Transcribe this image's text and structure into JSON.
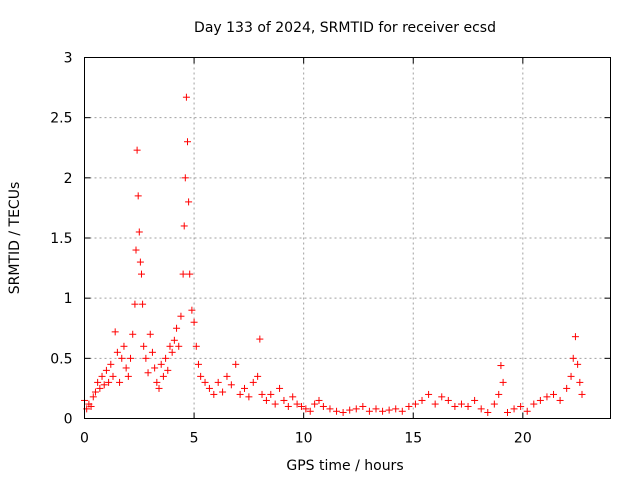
{
  "chart_data": {
    "type": "scatter",
    "title": "Day 133 of 2024, SRMTID for receiver ecsd",
    "xlabel": "GPS time / hours",
    "ylabel": "SRMTID / TECUs",
    "xlim": [
      0,
      24
    ],
    "ylim": [
      0,
      3
    ],
    "xticks": [
      0,
      5,
      10,
      15,
      20
    ],
    "xtick_labels": [
      "0",
      "5",
      "10",
      "15",
      "20"
    ],
    "yticks": [
      0,
      0.5,
      1,
      1.5,
      2,
      2.5,
      3
    ],
    "ytick_labels": [
      "0",
      "0.5",
      "1",
      "1.5",
      "2",
      "2.5",
      "3"
    ],
    "grid": true,
    "marker": "+",
    "color": "#ff0000",
    "series": [
      {
        "name": "SRMTID",
        "points": [
          [
            0.0,
            0.15
          ],
          [
            0.1,
            0.08
          ],
          [
            0.2,
            0.12
          ],
          [
            0.3,
            0.1
          ],
          [
            0.4,
            0.18
          ],
          [
            0.5,
            0.22
          ],
          [
            0.6,
            0.3
          ],
          [
            0.7,
            0.25
          ],
          [
            0.8,
            0.35
          ],
          [
            0.9,
            0.28
          ],
          [
            1.0,
            0.4
          ],
          [
            1.1,
            0.3
          ],
          [
            1.2,
            0.45
          ],
          [
            1.3,
            0.35
          ],
          [
            1.4,
            0.72
          ],
          [
            1.5,
            0.55
          ],
          [
            1.6,
            0.3
          ],
          [
            1.7,
            0.5
          ],
          [
            1.8,
            0.6
          ],
          [
            1.9,
            0.42
          ],
          [
            2.0,
            0.35
          ],
          [
            2.1,
            0.5
          ],
          [
            2.2,
            0.7
          ],
          [
            2.3,
            0.95
          ],
          [
            2.35,
            1.4
          ],
          [
            2.4,
            2.23
          ],
          [
            2.45,
            1.85
          ],
          [
            2.5,
            1.55
          ],
          [
            2.55,
            1.3
          ],
          [
            2.6,
            1.2
          ],
          [
            2.65,
            0.95
          ],
          [
            2.7,
            0.6
          ],
          [
            2.8,
            0.5
          ],
          [
            2.9,
            0.38
          ],
          [
            3.0,
            0.7
          ],
          [
            3.1,
            0.55
          ],
          [
            3.2,
            0.42
          ],
          [
            3.3,
            0.3
          ],
          [
            3.4,
            0.25
          ],
          [
            3.5,
            0.45
          ],
          [
            3.6,
            0.35
          ],
          [
            3.7,
            0.5
          ],
          [
            3.8,
            0.4
          ],
          [
            3.9,
            0.6
          ],
          [
            4.0,
            0.55
          ],
          [
            4.1,
            0.65
          ],
          [
            4.2,
            0.75
          ],
          [
            4.3,
            0.6
          ],
          [
            4.4,
            0.85
          ],
          [
            4.5,
            1.2
          ],
          [
            4.55,
            1.6
          ],
          [
            4.6,
            2.0
          ],
          [
            4.65,
            2.67
          ],
          [
            4.7,
            2.3
          ],
          [
            4.75,
            1.8
          ],
          [
            4.8,
            1.2
          ],
          [
            4.9,
            0.9
          ],
          [
            5.0,
            0.8
          ],
          [
            5.1,
            0.6
          ],
          [
            5.2,
            0.45
          ],
          [
            5.3,
            0.35
          ],
          [
            5.5,
            0.3
          ],
          [
            5.7,
            0.25
          ],
          [
            5.9,
            0.2
          ],
          [
            6.1,
            0.3
          ],
          [
            6.3,
            0.22
          ],
          [
            6.5,
            0.35
          ],
          [
            6.7,
            0.28
          ],
          [
            6.9,
            0.45
          ],
          [
            7.1,
            0.2
          ],
          [
            7.3,
            0.25
          ],
          [
            7.5,
            0.18
          ],
          [
            7.7,
            0.3
          ],
          [
            7.9,
            0.35
          ],
          [
            8.0,
            0.66
          ],
          [
            8.1,
            0.2
          ],
          [
            8.3,
            0.15
          ],
          [
            8.5,
            0.2
          ],
          [
            8.7,
            0.12
          ],
          [
            8.9,
            0.25
          ],
          [
            9.1,
            0.15
          ],
          [
            9.3,
            0.1
          ],
          [
            9.5,
            0.18
          ],
          [
            9.7,
            0.12
          ],
          [
            9.9,
            0.1
          ],
          [
            10.1,
            0.08
          ],
          [
            10.3,
            0.06
          ],
          [
            10.5,
            0.12
          ],
          [
            10.7,
            0.15
          ],
          [
            10.9,
            0.1
          ],
          [
            11.2,
            0.08
          ],
          [
            11.5,
            0.06
          ],
          [
            11.8,
            0.05
          ],
          [
            12.1,
            0.07
          ],
          [
            12.4,
            0.08
          ],
          [
            12.7,
            0.1
          ],
          [
            13.0,
            0.06
          ],
          [
            13.3,
            0.08
          ],
          [
            13.6,
            0.06
          ],
          [
            13.9,
            0.07
          ],
          [
            14.2,
            0.08
          ],
          [
            14.5,
            0.06
          ],
          [
            14.8,
            0.1
          ],
          [
            15.1,
            0.12
          ],
          [
            15.4,
            0.15
          ],
          [
            15.7,
            0.2
          ],
          [
            16.0,
            0.12
          ],
          [
            16.3,
            0.18
          ],
          [
            16.6,
            0.15
          ],
          [
            16.9,
            0.1
          ],
          [
            17.2,
            0.12
          ],
          [
            17.5,
            0.1
          ],
          [
            17.8,
            0.15
          ],
          [
            18.1,
            0.08
          ],
          [
            18.4,
            0.05
          ],
          [
            18.7,
            0.12
          ],
          [
            18.9,
            0.2
          ],
          [
            19.0,
            0.44
          ],
          [
            19.1,
            0.3
          ],
          [
            19.3,
            0.05
          ],
          [
            19.6,
            0.08
          ],
          [
            19.9,
            0.1
          ],
          [
            20.2,
            0.06
          ],
          [
            20.5,
            0.12
          ],
          [
            20.8,
            0.15
          ],
          [
            21.1,
            0.18
          ],
          [
            21.4,
            0.2
          ],
          [
            21.7,
            0.15
          ],
          [
            22.0,
            0.25
          ],
          [
            22.2,
            0.35
          ],
          [
            22.3,
            0.5
          ],
          [
            22.4,
            0.68
          ],
          [
            22.5,
            0.45
          ],
          [
            22.6,
            0.3
          ],
          [
            22.7,
            0.2
          ]
        ]
      }
    ]
  }
}
